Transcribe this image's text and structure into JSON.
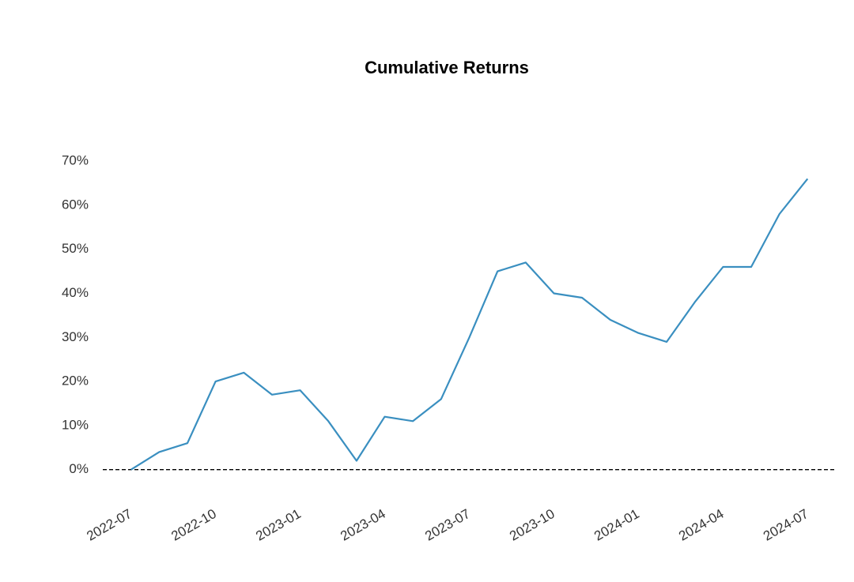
{
  "chart_data": {
    "type": "line",
    "title": "Cumulative Returns",
    "x": [
      "2022-07",
      "2022-08",
      "2022-09",
      "2022-10",
      "2022-11",
      "2022-12",
      "2023-01",
      "2023-02",
      "2023-03",
      "2023-04",
      "2023-05",
      "2023-06",
      "2023-07",
      "2023-08",
      "2023-09",
      "2023-10",
      "2023-11",
      "2023-12",
      "2024-01",
      "2024-02",
      "2024-03",
      "2024-04",
      "2024-05",
      "2024-06",
      "2024-07"
    ],
    "series": [
      {
        "color": "#3a8fc0",
        "values": [
          0,
          4,
          6,
          20,
          22,
          17,
          18,
          11,
          2,
          12,
          11,
          16,
          30,
          45,
          47,
          40,
          39,
          34,
          31,
          29,
          38,
          46,
          46,
          58,
          66
        ]
      }
    ],
    "xlim": [
      "2022-06",
      "2024-08"
    ],
    "xticks": [
      "2022-07",
      "2022-10",
      "2023-01",
      "2023-04",
      "2023-07",
      "2023-10",
      "2024-01",
      "2024-04",
      "2024-07"
    ],
    "ylim": [
      -4,
      77
    ],
    "yticks": [
      {
        "value": 0,
        "label": "0%"
      },
      {
        "value": 10,
        "label": "10%"
      },
      {
        "value": 20,
        "label": "20%"
      },
      {
        "value": 30,
        "label": "30%"
      },
      {
        "value": 40,
        "label": "40%"
      },
      {
        "value": 50,
        "label": "50%"
      },
      {
        "value": 60,
        "label": "60%"
      },
      {
        "value": 70,
        "label": "70%"
      }
    ],
    "grid": false
  }
}
